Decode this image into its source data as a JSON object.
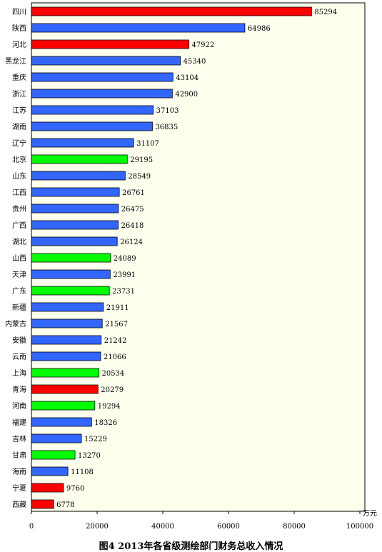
{
  "chart_data": {
    "type": "bar",
    "orientation": "horizontal",
    "title": "图4   2013年各省级测绘部门财务总收入情况",
    "unit_label": "万元",
    "xlim": [
      0,
      100000
    ],
    "xticks": [
      "0",
      "20000",
      "40000",
      "60000",
      "80000",
      "100000"
    ],
    "grid": false,
    "categories": [
      "四川",
      "陕西",
      "河北",
      "黑龙江",
      "重庆",
      "浙江",
      "江苏",
      "湖南",
      "辽宁",
      "北京",
      "山东",
      "江西",
      "贵州",
      "广西",
      "湖北",
      "山西",
      "天津",
      "广东",
      "新疆",
      "内蒙古",
      "安徽",
      "云南",
      "上海",
      "青海",
      "河南",
      "福建",
      "吉林",
      "甘肃",
      "海南",
      "宁夏",
      "西藏"
    ],
    "values": [
      85294,
      64986,
      47922,
      45340,
      43104,
      42900,
      37103,
      36835,
      31107,
      29195,
      28549,
      26761,
      26475,
      26418,
      26124,
      24089,
      23991,
      23731,
      21911,
      21567,
      21242,
      21066,
      20534,
      20279,
      19294,
      18326,
      15229,
      13270,
      11108,
      9760,
      6778
    ],
    "value_labels": [
      "85294",
      "64986",
      "47922",
      "45340",
      "43104",
      "42900",
      "37103",
      "36835",
      "31107",
      "29195",
      "28549",
      "26761",
      "26475",
      "26418",
      "26124",
      "24089",
      "23991",
      "23731",
      "21911",
      "21567",
      "21242",
      "21066",
      "20534",
      "20279",
      "19294",
      "18326",
      "15229",
      "13270",
      "11108",
      "9760",
      "6778"
    ],
    "bar_color_groups": [
      "red",
      "blue",
      "red",
      "blue",
      "blue",
      "blue",
      "blue",
      "blue",
      "blue",
      "green",
      "blue",
      "blue",
      "blue",
      "blue",
      "blue",
      "green",
      "blue",
      "green",
      "blue",
      "blue",
      "blue",
      "blue",
      "green",
      "red",
      "green",
      "blue",
      "blue",
      "green",
      "blue",
      "red",
      "red"
    ],
    "colors": {
      "red": "#ff0000",
      "blue": "#3366ff",
      "green": "#00ff00",
      "plot_background": "#ffffee",
      "border": "#000000"
    }
  }
}
